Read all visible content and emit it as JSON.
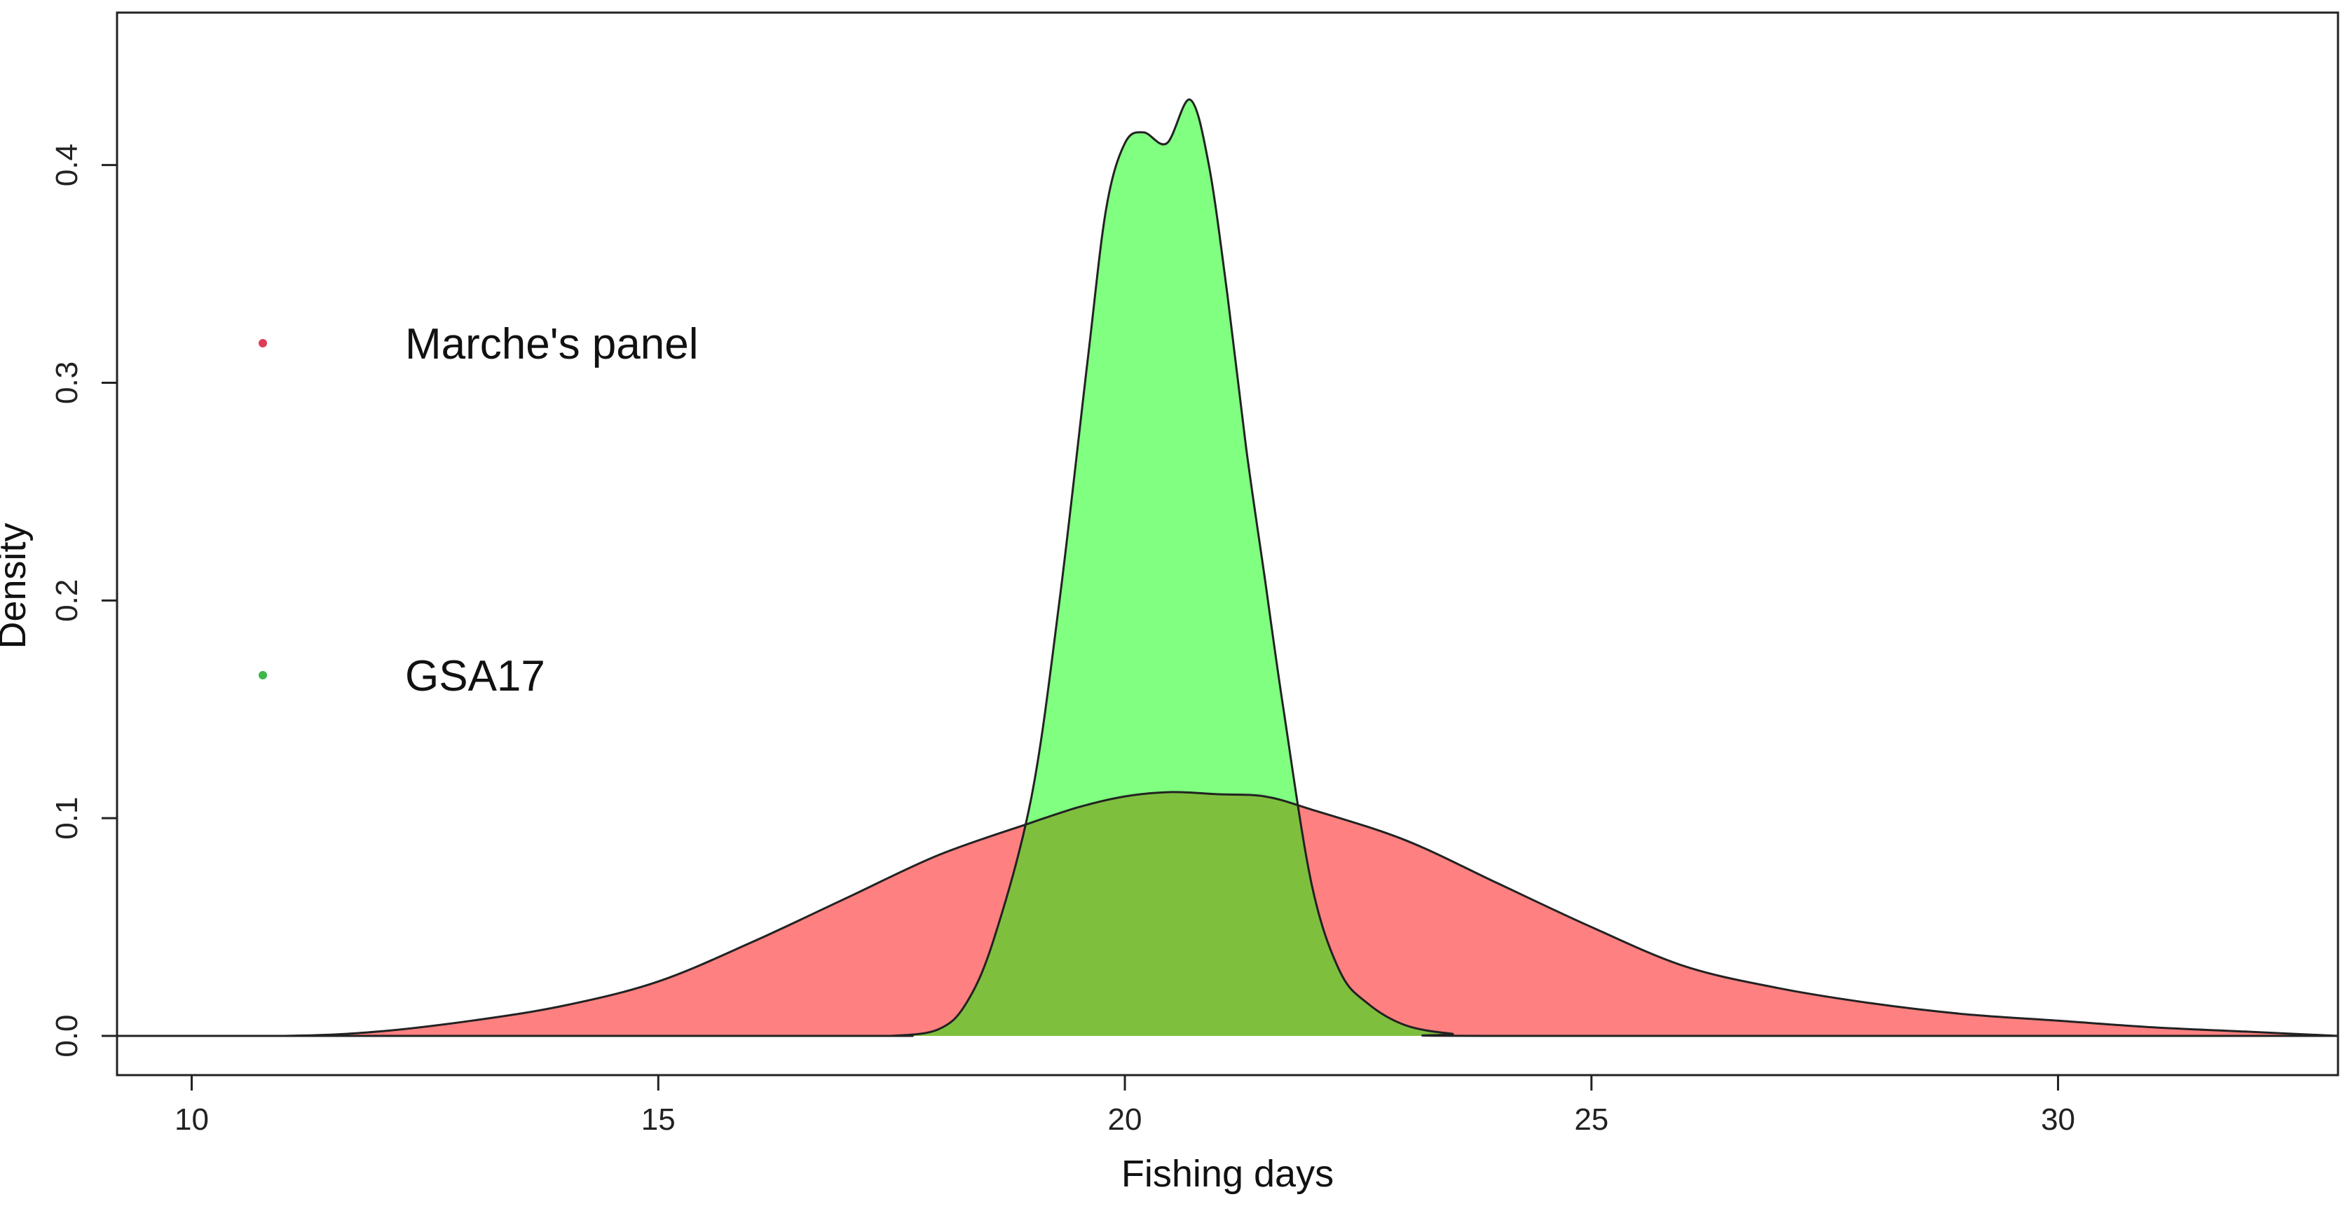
{
  "chart_data": {
    "type": "area",
    "xlabel": "Fishing days",
    "ylabel": "Density",
    "xlim": [
      9.2,
      33
    ],
    "ylim": [
      -0.018,
      0.47
    ],
    "xticks": [
      10,
      15,
      20,
      25,
      30
    ],
    "yticks": [
      0.0,
      0.1,
      0.2,
      0.3,
      0.4
    ],
    "ytick_labels": [
      "0.0",
      "0.1",
      "0.2",
      "0.3",
      "0.4"
    ],
    "grid": false,
    "legend_position": "left",
    "series": [
      {
        "name": "Marche's panel",
        "color": "#ff8080",
        "legend_dot_color": "#e03a55",
        "x": [
          9.2,
          11.0,
          12.0,
          13.0,
          14.0,
          15.0,
          16.0,
          17.0,
          18.0,
          19.0,
          19.5,
          20.0,
          20.5,
          21.0,
          21.5,
          22.0,
          23.0,
          24.0,
          25.0,
          26.0,
          27.0,
          28.0,
          29.0,
          30.0,
          31.0,
          32.0,
          33.0
        ],
        "y": [
          0.0,
          0.0,
          0.002,
          0.007,
          0.014,
          0.025,
          0.043,
          0.063,
          0.083,
          0.098,
          0.105,
          0.11,
          0.112,
          0.111,
          0.11,
          0.104,
          0.09,
          0.07,
          0.05,
          0.032,
          0.022,
          0.015,
          0.01,
          0.007,
          0.004,
          0.002,
          0.0
        ]
      },
      {
        "name": "GSA17",
        "color": "#80ff80",
        "legend_dot_color": "#3db84a",
        "x": [
          9.2,
          17.0,
          17.5,
          18.0,
          18.3,
          18.6,
          19.0,
          19.3,
          19.6,
          19.8,
          20.0,
          20.2,
          20.45,
          20.7,
          20.9,
          21.1,
          21.3,
          21.5,
          21.7,
          22.0,
          22.3,
          22.6,
          23.0,
          23.5,
          24.0,
          33.0
        ],
        "y": [
          0.0,
          0.0,
          0.0,
          0.003,
          0.015,
          0.045,
          0.11,
          0.2,
          0.31,
          0.38,
          0.41,
          0.415,
          0.41,
          0.43,
          0.4,
          0.34,
          0.27,
          0.21,
          0.15,
          0.07,
          0.03,
          0.015,
          0.005,
          0.001,
          0.0,
          0.0
        ]
      }
    ],
    "overlap_color": "#7fbf3e"
  }
}
